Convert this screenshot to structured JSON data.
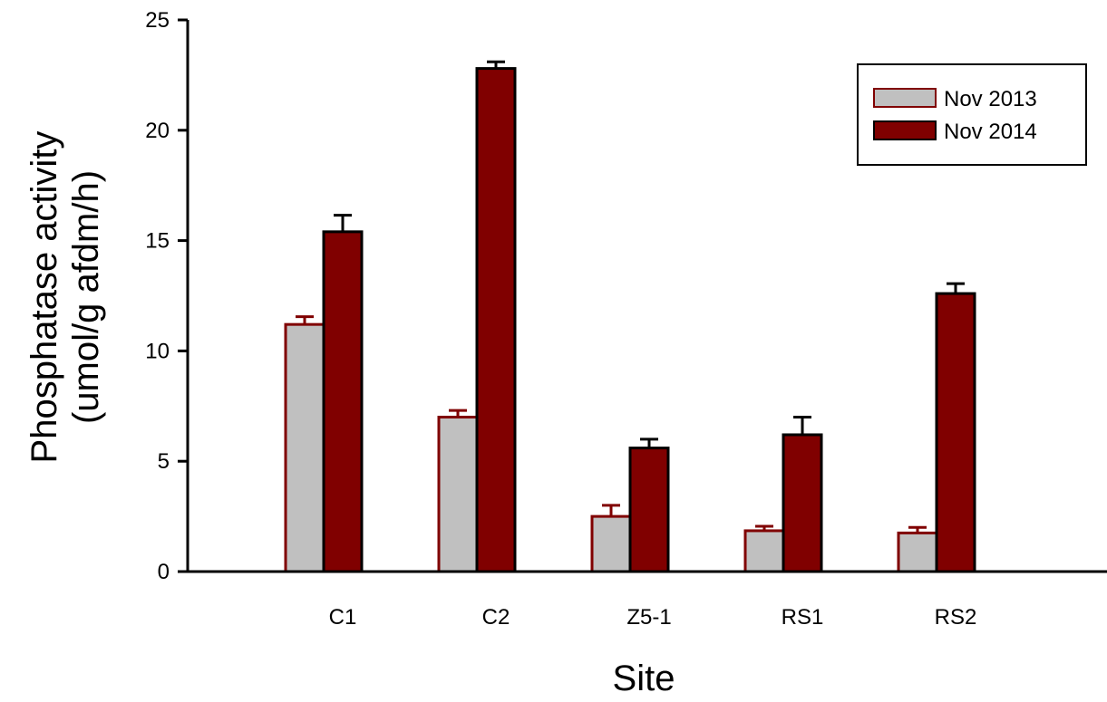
{
  "chart_data": {
    "type": "bar",
    "title": "",
    "xlabel": "Site",
    "ylabel_lines": [
      "Phosphatase activity",
      "(umol/g afdm/h)"
    ],
    "ylim": [
      0,
      25
    ],
    "yticks": [
      0,
      5,
      10,
      15,
      20,
      25
    ],
    "categories": [
      "C1",
      "C2",
      "Z5-1",
      "RS1",
      "RS2"
    ],
    "series": [
      {
        "name": "Nov 2013",
        "fill": "#c0c0c0",
        "stroke": "#800000",
        "values": [
          11.2,
          7.0,
          2.5,
          1.85,
          1.75
        ],
        "errors": [
          0.35,
          0.3,
          0.5,
          0.2,
          0.25
        ]
      },
      {
        "name": "Nov 2014",
        "fill": "#800000",
        "stroke": "#000000",
        "values": [
          15.4,
          22.8,
          5.6,
          6.2,
          12.6
        ],
        "errors": [
          0.75,
          0.3,
          0.4,
          0.8,
          0.45
        ]
      }
    ],
    "legend_position": "top-right",
    "grid": false
  }
}
